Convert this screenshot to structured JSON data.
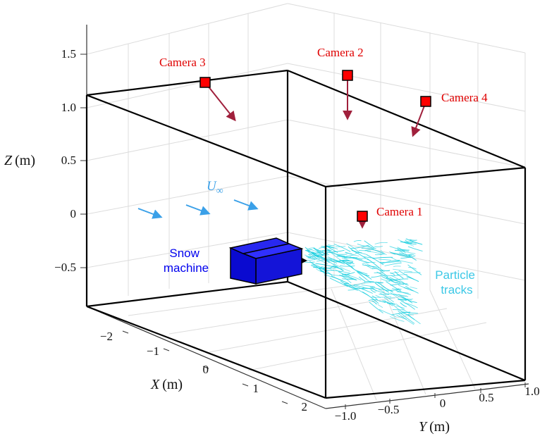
{
  "axes": {
    "z_label": "Z",
    "z_unit": "(m)",
    "x_label": "X",
    "x_unit": "(m)",
    "y_label": "Y",
    "y_unit": "(m)",
    "z_ticks": [
      "1.5",
      "1.0",
      "0.5",
      "0",
      "−0.5"
    ],
    "x_ticks": [
      "−2",
      "−1",
      "0",
      "1",
      "2"
    ],
    "y_ticks": [
      "−1.0",
      "−0.5",
      "0",
      "0.5",
      "1.0"
    ]
  },
  "cameras": [
    {
      "name": "Camera 3"
    },
    {
      "name": "Camera 2"
    },
    {
      "name": "Camera 4"
    },
    {
      "name": "Camera 1"
    }
  ],
  "flow_label": "U",
  "flow_subscript": "∞",
  "snow_machine_label": [
    "Snow",
    "machine"
  ],
  "particle_tracks_label": [
    "Particle",
    "tracks"
  ],
  "colors": {
    "camera": "#e00000",
    "camera_arrow": "#a0203c",
    "flow_arrow": "#3aa0e8",
    "snow_machine": "#1010e0",
    "particles": "#20d0e0",
    "box": "#000000",
    "grid": "#dcdcdc"
  }
}
